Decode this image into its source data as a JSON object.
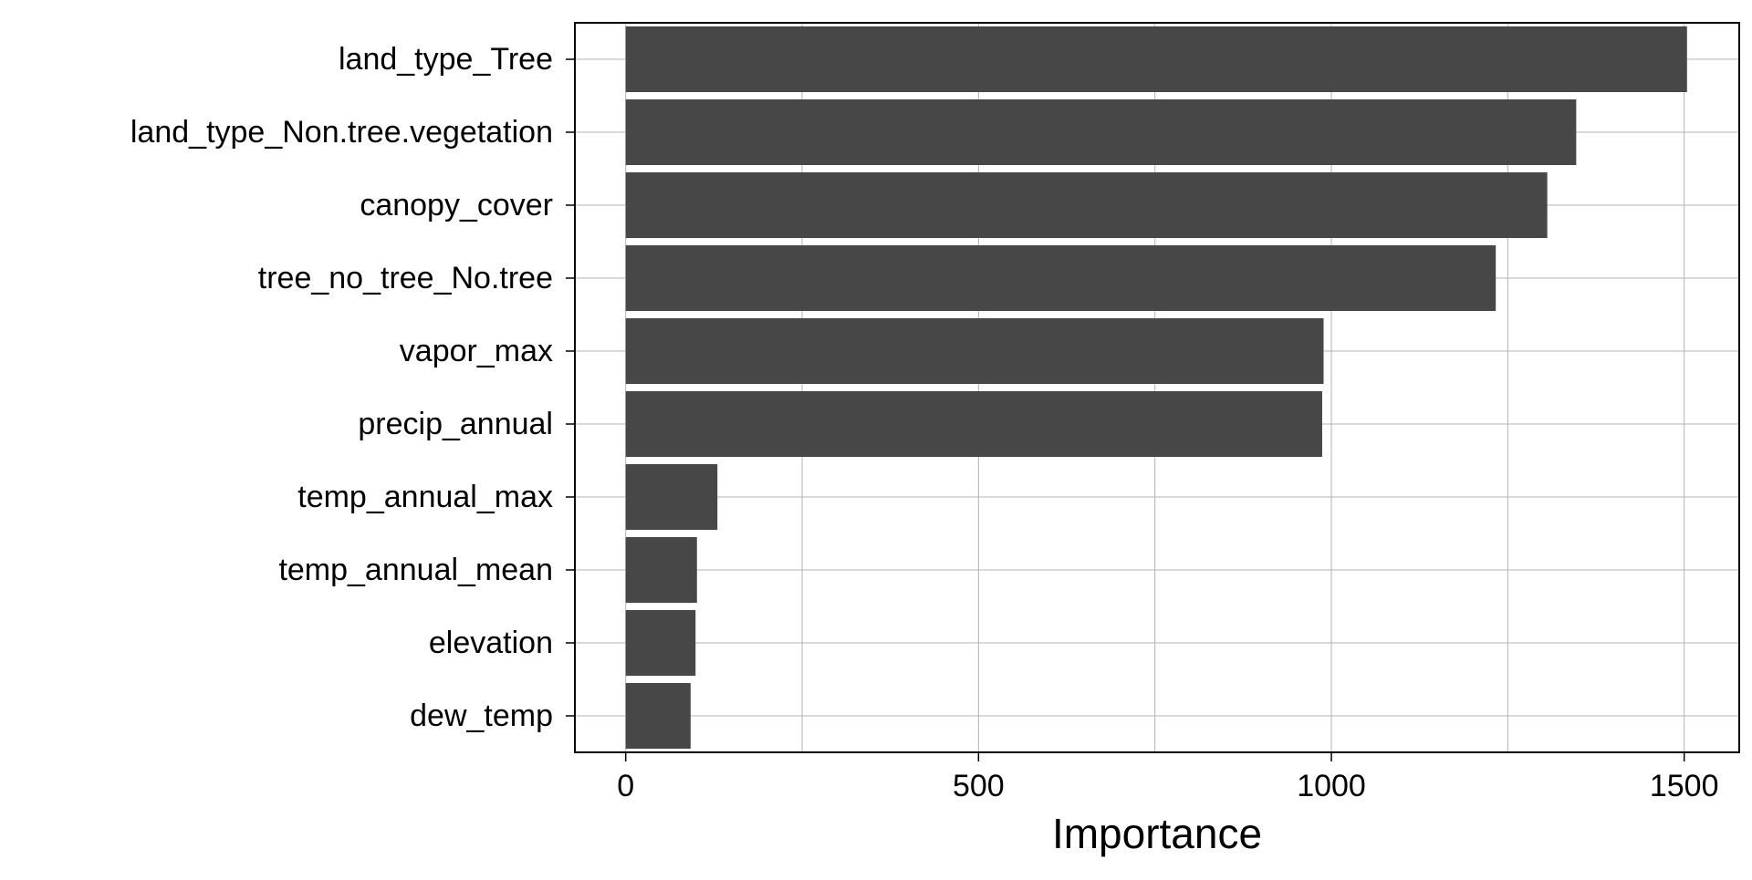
{
  "chart_data": {
    "type": "bar",
    "orientation": "horizontal",
    "title": "",
    "xlabel": "Importance",
    "ylabel": "",
    "categories": [
      "land_type_Tree",
      "land_type_Non.tree.vegetation",
      "canopy_cover",
      "tree_no_tree_No.tree",
      "vapor_max",
      "precip_annual",
      "temp_annual_max",
      "temp_annual_mean",
      "elevation",
      "dew_temp"
    ],
    "values": [
      1504,
      1347,
      1306,
      1233,
      989,
      987,
      130,
      101,
      99,
      92
    ],
    "xlim": [
      -72,
      1578
    ],
    "xticks": [
      0,
      500,
      1000,
      1500
    ],
    "xtick_labels": [
      "0",
      "500",
      "1000",
      "1500"
    ],
    "minor_xticks": [
      250,
      750,
      1250
    ],
    "grid": true,
    "legend": "none",
    "colors": {
      "bar": "#474747",
      "grid": "#b3b3b3",
      "frame": "#000000",
      "background": "#ffffff"
    }
  }
}
